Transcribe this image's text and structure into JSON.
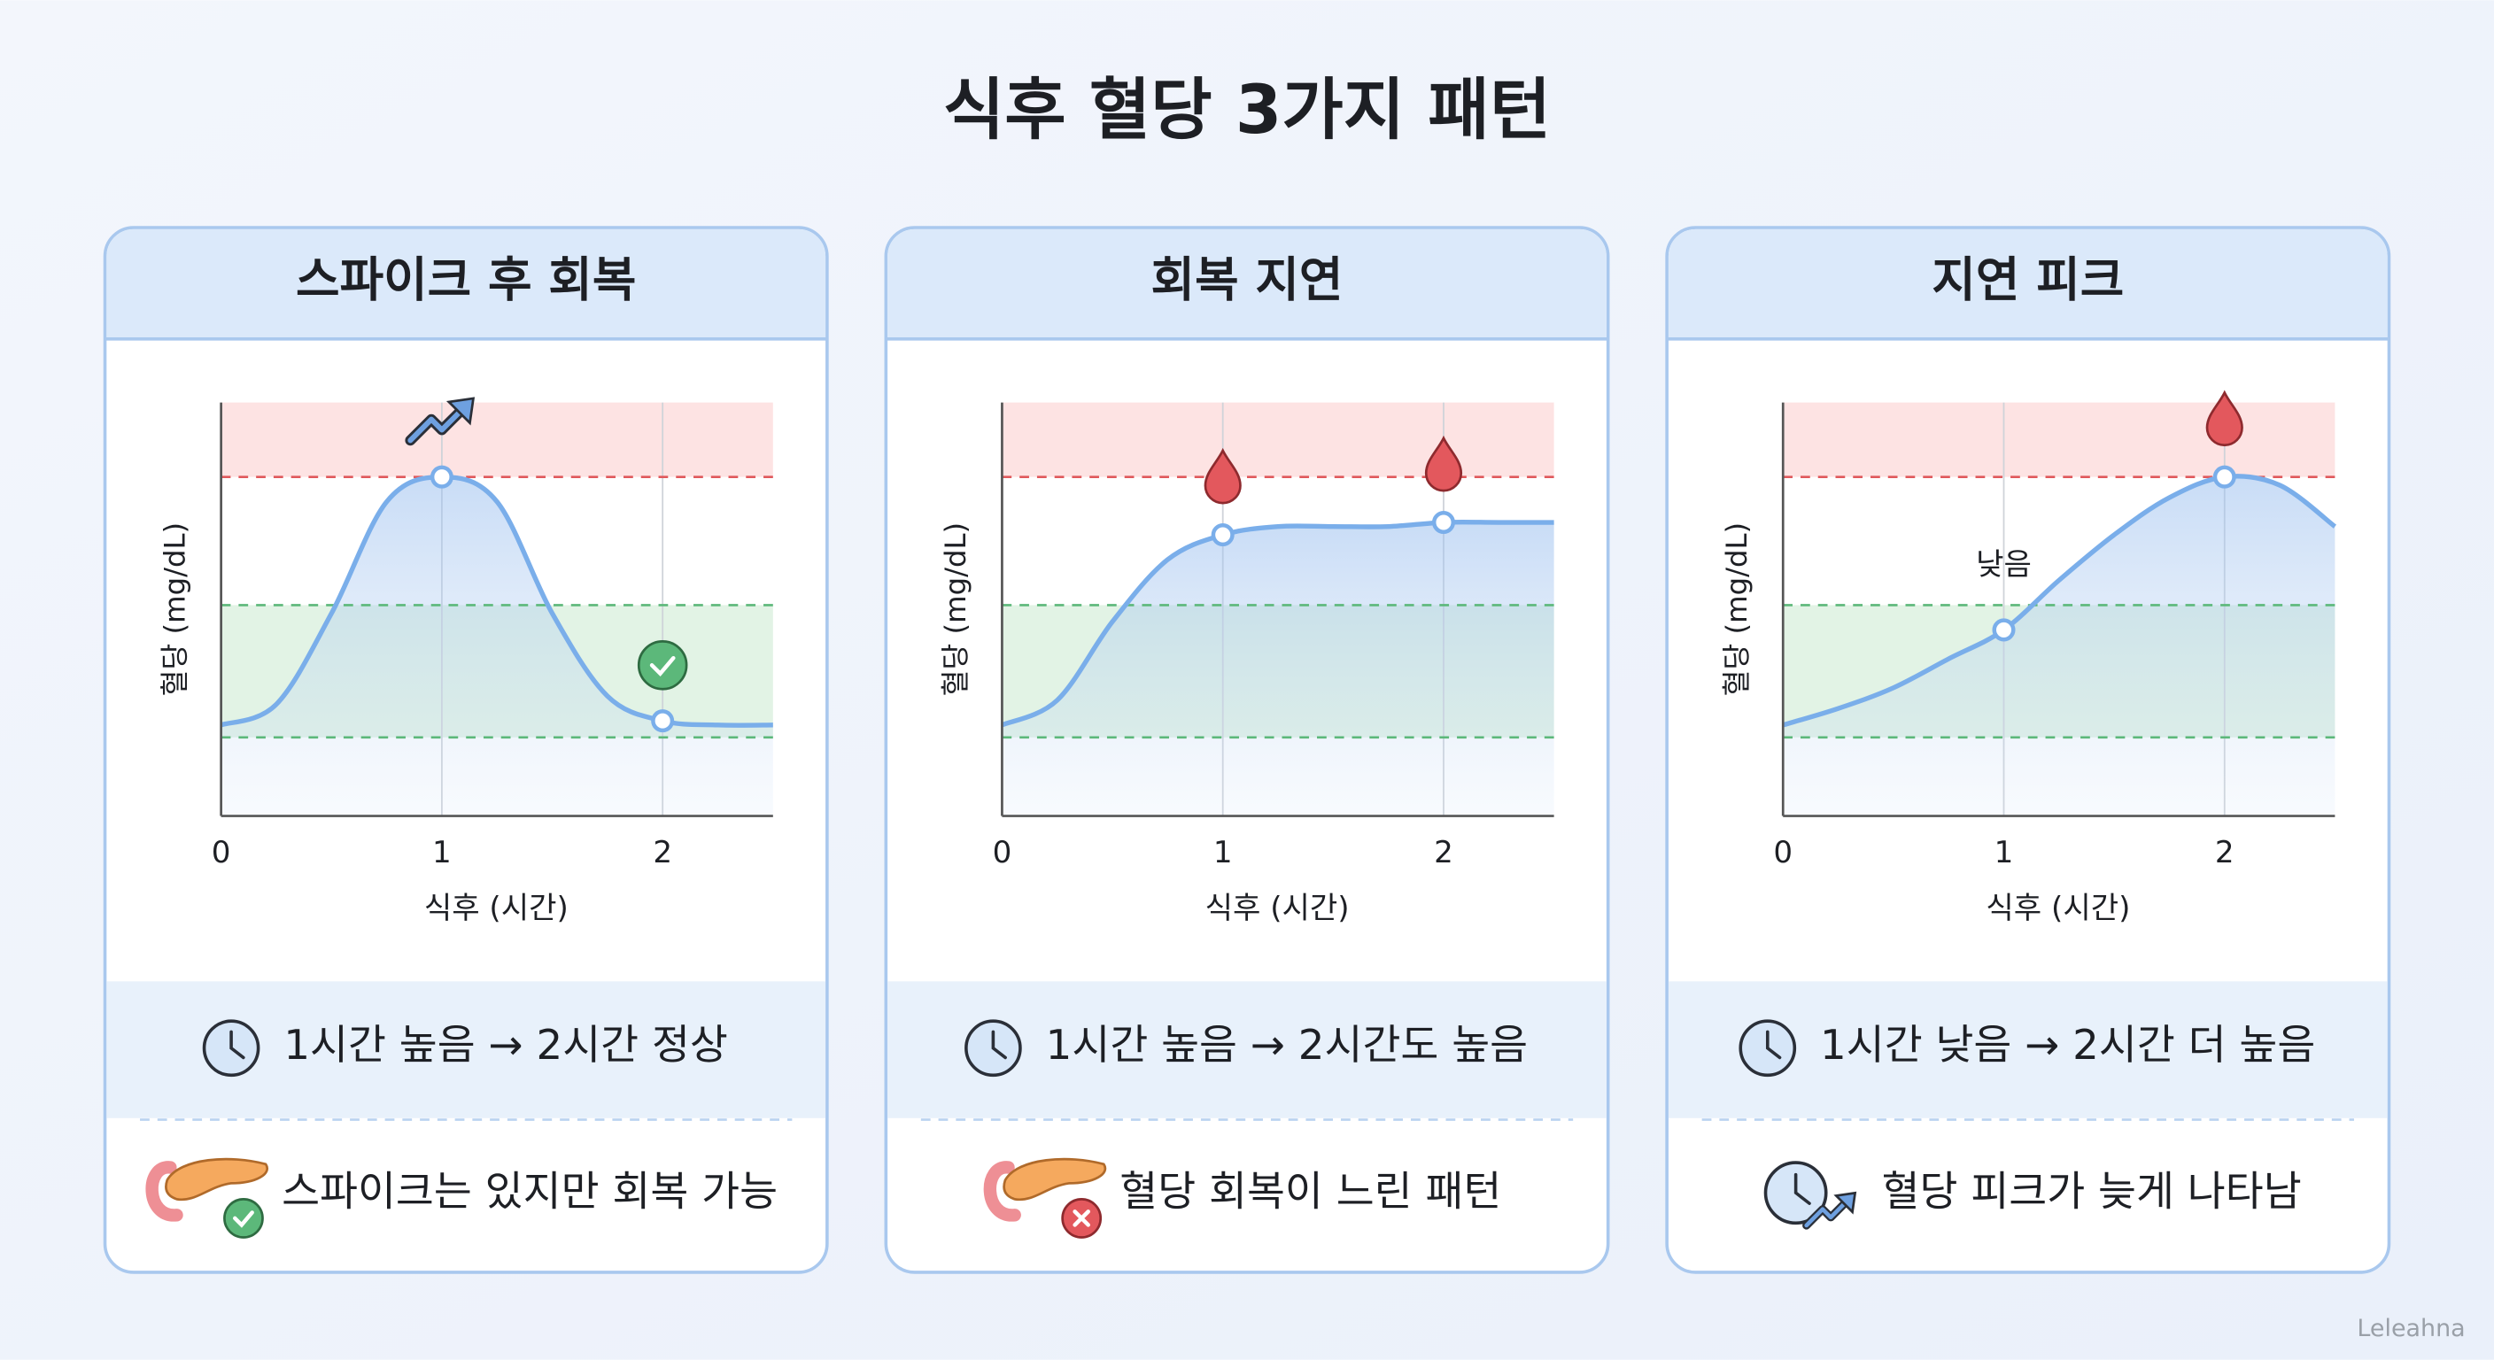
{
  "title": "식후 혈당 3가지 패턴",
  "watermark": "Leleahna",
  "chart_data": [
    {
      "type": "line",
      "title": "스파이크 후 회복",
      "x_label": "식후 (시간)",
      "y_label": "혈당 (mg/dL)",
      "x": [
        0,
        0.25,
        0.5,
        0.75,
        1,
        1.25,
        1.5,
        1.75,
        2,
        2.25,
        2.5
      ],
      "values": [
        22,
        27,
        49,
        76,
        82,
        76,
        49,
        29,
        23,
        22,
        22
      ],
      "xlim": [
        0,
        2.5
      ],
      "xticks": [
        0,
        1,
        2
      ],
      "ylim": [
        0,
        100
      ],
      "high_threshold": 82,
      "normal_range": [
        19,
        51
      ],
      "color": "#7aaeea",
      "grid": true,
      "summary": "1시간 높음 → 2시간 정상",
      "verdict": "스파이크는 있지만 회복 가능"
    },
    {
      "type": "line",
      "title": "회복 지연",
      "x_label": "식후 (시간)",
      "y_label": "혈당 (mg/dL)",
      "x": [
        0,
        0.25,
        0.5,
        0.75,
        1,
        1.25,
        1.5,
        1.75,
        2,
        2.25,
        2.5
      ],
      "values": [
        22,
        28,
        47,
        62,
        68,
        70,
        70,
        70,
        71,
        71,
        71
      ],
      "xlim": [
        0,
        2.5
      ],
      "xticks": [
        0,
        1,
        2
      ],
      "ylim": [
        0,
        100
      ],
      "high_threshold": 82,
      "normal_range": [
        19,
        51
      ],
      "color": "#7aaeea",
      "grid": true,
      "summary": "1시간 높음 → 2시간도 높음",
      "verdict": "혈당 회복이 느린 패턴"
    },
    {
      "type": "line",
      "title": "지연 피크",
      "x_label": "식후 (시간)",
      "y_label": "혈당 (mg/dL)",
      "x": [
        0,
        0.25,
        0.5,
        0.75,
        1,
        1.25,
        1.5,
        1.75,
        2,
        2.25,
        2.5
      ],
      "values": [
        22,
        26,
        31,
        38,
        45,
        57,
        68,
        77,
        82,
        80,
        70
      ],
      "xlim": [
        0,
        2.5
      ],
      "xticks": [
        0,
        1,
        2
      ],
      "ylim": [
        0,
        100
      ],
      "high_threshold": 82,
      "normal_range": [
        19,
        51
      ],
      "color": "#7aaeea",
      "grid": true,
      "annotation": "낮음",
      "summary": "1시간 낮음 → 2시간 더 높음",
      "verdict": "혈당 피크가 늦게 나타남"
    }
  ]
}
